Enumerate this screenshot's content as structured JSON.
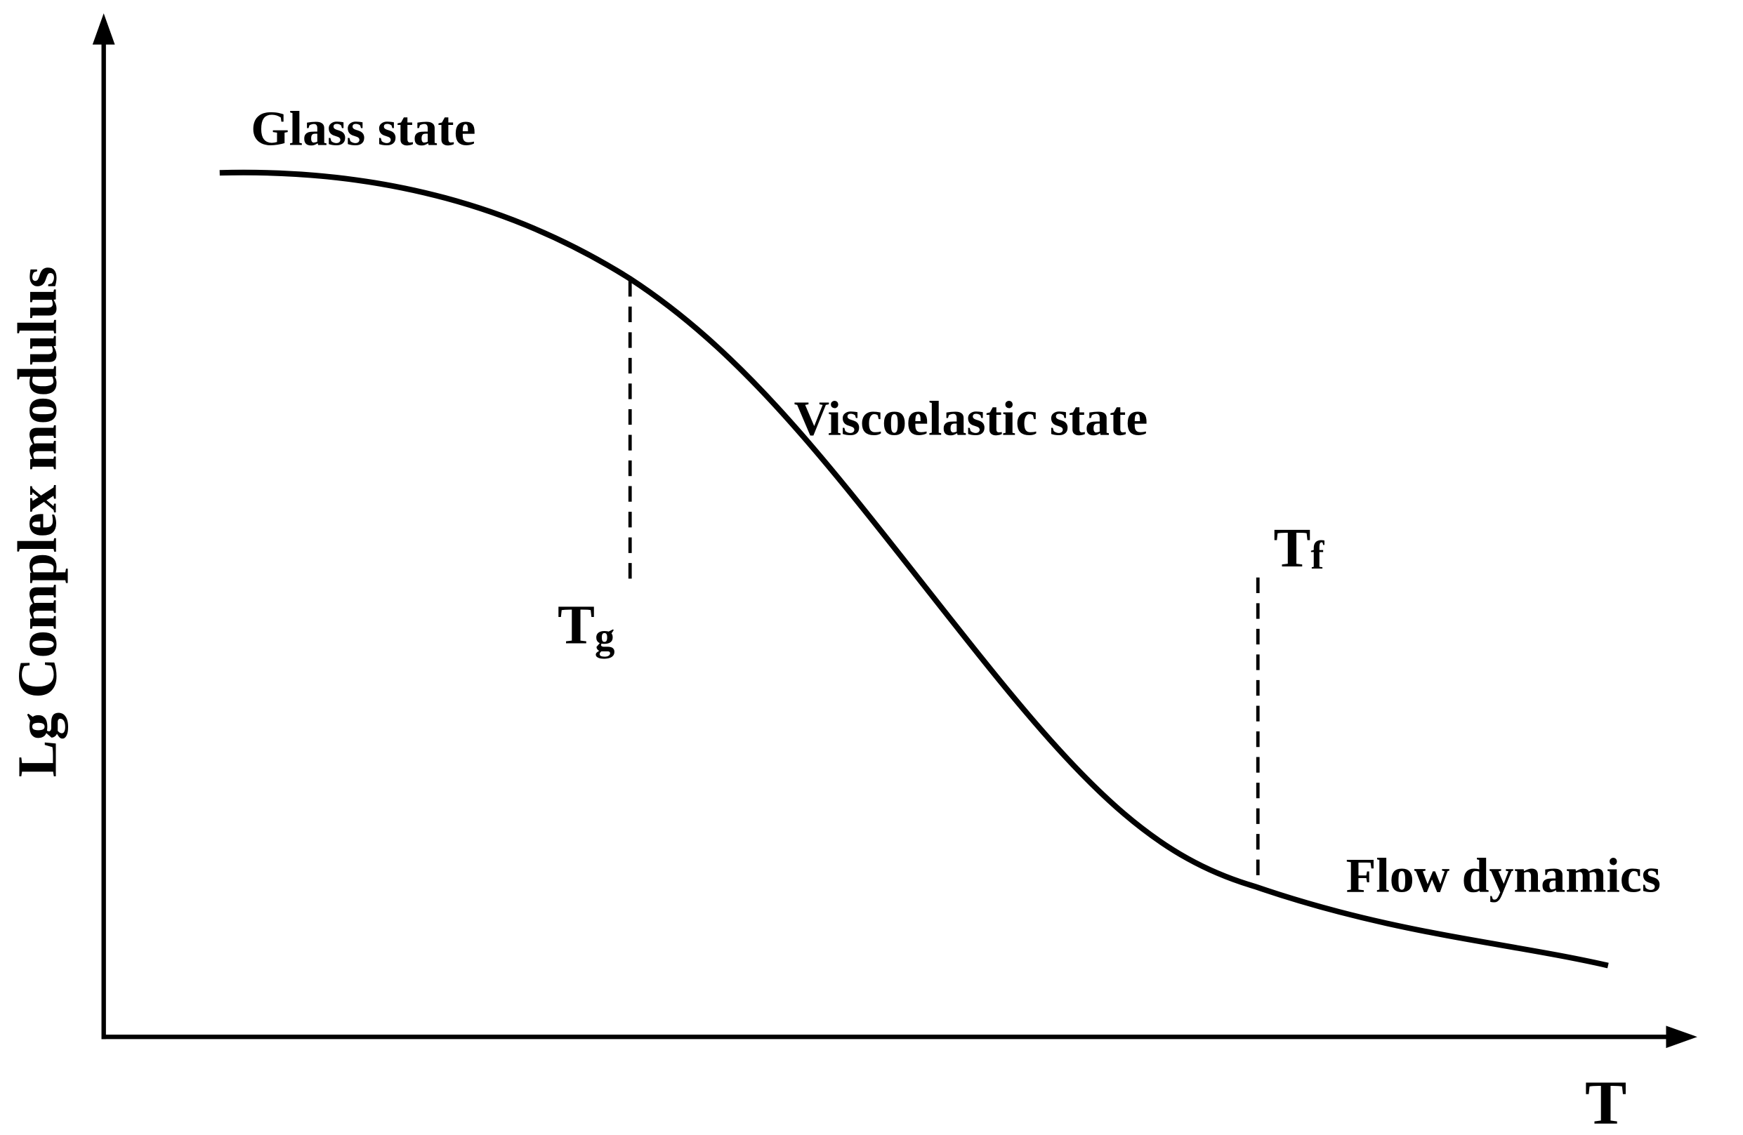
{
  "axes": {
    "y_label": "Lg Complex modulus",
    "x_label": "T"
  },
  "regions": [
    "Glass state",
    "Viscoelastic state",
    "Flow dynamics"
  ],
  "markers": [
    {
      "label": "T",
      "subscript": "g"
    },
    {
      "label": "T",
      "subscript": "f"
    }
  ]
}
